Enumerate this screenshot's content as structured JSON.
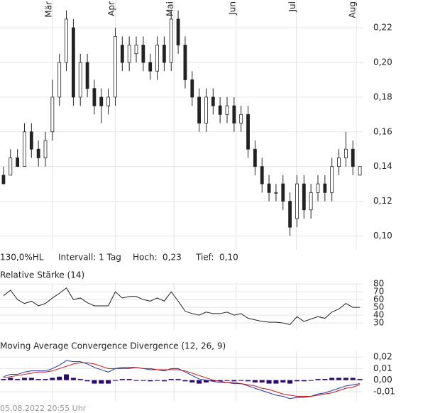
{
  "info": {
    "range": "130,0%HL",
    "interval": "Intervall: 1 Tag",
    "high_label": "Hoch:",
    "high_value": "0,23",
    "low_label": "Tief:",
    "low_value": "0,10"
  },
  "footer": "05.08.2022 20:55 Uhr",
  "chart_data": [
    {
      "type": "candlestick",
      "xlim": [
        -0.5,
        51.5
      ],
      "xticks": [
        {
          "value": 7,
          "label": "Mär"
        },
        {
          "value": 16,
          "label": "Apr"
        },
        {
          "value": 24.4,
          "label": "Mai"
        },
        {
          "value": 33.3,
          "label": "Jun"
        },
        {
          "value": 41.9,
          "label": "Jul"
        },
        {
          "value": 50.5,
          "label": "Aug"
        }
      ],
      "ylim": [
        0.092,
        0.236
      ],
      "yticks": [
        {
          "value": 0.1,
          "label": "0,10"
        },
        {
          "value": 0.12,
          "label": "0,12"
        },
        {
          "value": 0.14,
          "label": "0,14"
        },
        {
          "value": 0.16,
          "label": "0,16"
        },
        {
          "value": 0.18,
          "label": "0,18"
        },
        {
          "value": 0.2,
          "label": "0,20"
        },
        {
          "value": 0.22,
          "label": "0,22"
        }
      ],
      "grid": true,
      "up_color": "#ffffff",
      "down_color": "#222222",
      "open": [
        0.135,
        0.135,
        0.145,
        0.14,
        0.16,
        0.15,
        0.145,
        0.16,
        0.18,
        0.2,
        0.22,
        0.18,
        0.2,
        0.185,
        0.18,
        0.175,
        0.18,
        0.21,
        0.2,
        0.205,
        0.21,
        0.2,
        0.195,
        0.21,
        0.2,
        0.225,
        0.21,
        0.19,
        0.18,
        0.165,
        0.18,
        0.175,
        0.17,
        0.175,
        0.165,
        0.17,
        0.15,
        0.14,
        0.13,
        0.125,
        0.13,
        0.12,
        0.11,
        0.13,
        0.115,
        0.125,
        0.13,
        0.125,
        0.14,
        0.145,
        0.15,
        0.135
      ],
      "high": [
        0.14,
        0.15,
        0.15,
        0.165,
        0.165,
        0.155,
        0.16,
        0.19,
        0.205,
        0.23,
        0.225,
        0.205,
        0.205,
        0.19,
        0.185,
        0.185,
        0.22,
        0.215,
        0.215,
        0.215,
        0.215,
        0.205,
        0.215,
        0.215,
        0.23,
        0.23,
        0.215,
        0.195,
        0.185,
        0.185,
        0.185,
        0.18,
        0.18,
        0.18,
        0.175,
        0.175,
        0.155,
        0.145,
        0.135,
        0.13,
        0.135,
        0.125,
        0.135,
        0.135,
        0.13,
        0.135,
        0.135,
        0.145,
        0.15,
        0.16,
        0.155,
        0.14
      ],
      "low": [
        0.13,
        0.135,
        0.14,
        0.14,
        0.145,
        0.14,
        0.14,
        0.155,
        0.175,
        0.195,
        0.175,
        0.175,
        0.18,
        0.17,
        0.165,
        0.17,
        0.175,
        0.195,
        0.195,
        0.2,
        0.195,
        0.19,
        0.19,
        0.195,
        0.195,
        0.205,
        0.185,
        0.175,
        0.16,
        0.16,
        0.17,
        0.165,
        0.165,
        0.16,
        0.16,
        0.145,
        0.135,
        0.125,
        0.12,
        0.12,
        0.115,
        0.1,
        0.105,
        0.11,
        0.11,
        0.12,
        0.12,
        0.12,
        0.135,
        0.14,
        0.135,
        0.135
      ],
      "close": [
        0.13,
        0.145,
        0.14,
        0.16,
        0.15,
        0.145,
        0.155,
        0.18,
        0.2,
        0.225,
        0.18,
        0.2,
        0.185,
        0.175,
        0.175,
        0.18,
        0.215,
        0.2,
        0.21,
        0.21,
        0.2,
        0.195,
        0.21,
        0.2,
        0.225,
        0.21,
        0.19,
        0.18,
        0.165,
        0.18,
        0.175,
        0.17,
        0.175,
        0.165,
        0.17,
        0.15,
        0.14,
        0.13,
        0.125,
        0.125,
        0.12,
        0.105,
        0.13,
        0.115,
        0.125,
        0.13,
        0.125,
        0.14,
        0.145,
        0.15,
        0.14,
        0.14
      ]
    },
    {
      "type": "line",
      "title": "Relative Stärke (14)",
      "ylim": [
        21,
        82
      ],
      "yticks": [
        30,
        40,
        50,
        60,
        70,
        80
      ],
      "grid": true,
      "series": [
        {
          "color": "#222222",
          "values": [
            65,
            72,
            60,
            55,
            58,
            52,
            55,
            62,
            68,
            75,
            60,
            62,
            56,
            52,
            52,
            52,
            70,
            62,
            64,
            64,
            60,
            58,
            62,
            58,
            70,
            58,
            45,
            42,
            40,
            44,
            42,
            42,
            44,
            40,
            42,
            36,
            34,
            32,
            31,
            31,
            30,
            28,
            38,
            32,
            35,
            38,
            36,
            44,
            48,
            55,
            50,
            50
          ]
        }
      ]
    },
    {
      "type": "macd",
      "title": "Moving Average Convergence Divergence (12, 26, 9)",
      "ylim": [
        -0.018,
        0.025
      ],
      "yticks": [
        {
          "value": -0.01,
          "label": "-0,01"
        },
        {
          "value": 0,
          "label": "0,00"
        },
        {
          "value": 0.01,
          "label": "0,01"
        },
        {
          "value": 0.02,
          "label": "0,02"
        }
      ],
      "grid": true,
      "series": [
        {
          "kind": "bar",
          "color": "#2a0a6e",
          "values": [
            0.001,
            0.002,
            0.001,
            0.002,
            0.002,
            0.001,
            0.001,
            0.002,
            0.003,
            0.005,
            0.002,
            0.001,
            -0.001,
            -0.003,
            -0.003,
            -0.003,
            0,
            0.001,
            0.001,
            0,
            0,
            -0.001,
            0,
            -0.001,
            0.001,
            0.001,
            -0.001,
            -0.002,
            -0.003,
            -0.002,
            -0.001,
            -0.001,
            0,
            -0.001,
            0,
            -0.001,
            -0.002,
            -0.002,
            -0.003,
            -0.003,
            -0.002,
            -0.003,
            -0.001,
            -0.001,
            0,
            0.001,
            0.001,
            0.002,
            0.002,
            0.002,
            0.002,
            0.001
          ]
        },
        {
          "kind": "line",
          "color": "#2233aa",
          "values": [
            0.003,
            0.005,
            0.005,
            0.007,
            0.008,
            0.008,
            0.008,
            0.01,
            0.013,
            0.017,
            0.016,
            0.016,
            0.014,
            0.011,
            0.009,
            0.007,
            0.01,
            0.011,
            0.011,
            0.011,
            0.01,
            0.009,
            0.009,
            0.008,
            0.01,
            0.01,
            0.007,
            0.004,
            0.001,
            0,
            -0.001,
            -0.002,
            -0.002,
            -0.003,
            -0.003,
            -0.005,
            -0.007,
            -0.009,
            -0.011,
            -0.013,
            -0.014,
            -0.016,
            -0.015,
            -0.015,
            -0.014,
            -0.012,
            -0.011,
            -0.009,
            -0.007,
            -0.005,
            -0.004,
            -0.003
          ]
        },
        {
          "kind": "line",
          "color": "#cc1111",
          "values": [
            0.002,
            0.003,
            0.004,
            0.005,
            0.006,
            0.007,
            0.007,
            0.008,
            0.01,
            0.012,
            0.014,
            0.015,
            0.015,
            0.014,
            0.012,
            0.01,
            0.01,
            0.01,
            0.01,
            0.011,
            0.01,
            0.01,
            0.009,
            0.009,
            0.009,
            0.009,
            0.008,
            0.006,
            0.004,
            0.002,
            0,
            -0.001,
            -0.002,
            -0.002,
            -0.003,
            -0.004,
            -0.005,
            -0.007,
            -0.008,
            -0.01,
            -0.012,
            -0.013,
            -0.014,
            -0.014,
            -0.014,
            -0.013,
            -0.012,
            -0.011,
            -0.009,
            -0.007,
            -0.006,
            -0.004
          ]
        }
      ]
    }
  ]
}
